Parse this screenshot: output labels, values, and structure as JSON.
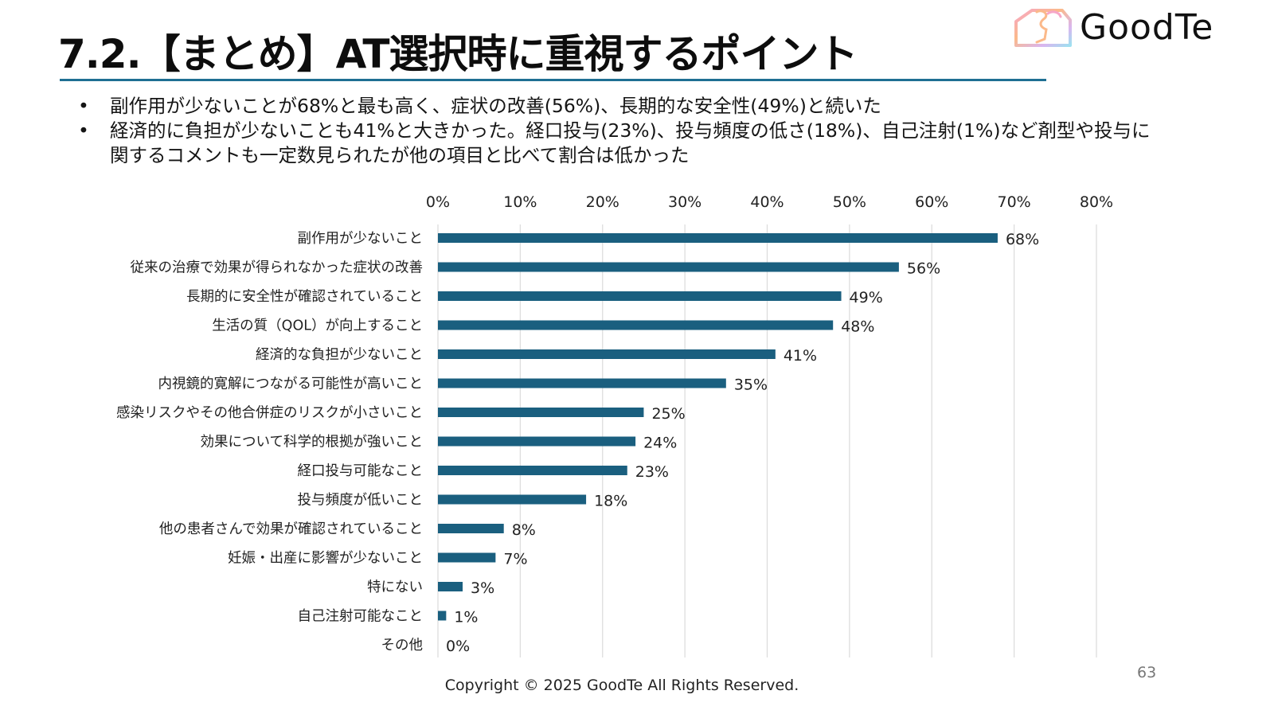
{
  "slide": {
    "title": "7.2.【まとめ】AT選択時に重視するポイント",
    "brand": "GoodTe",
    "bullets": [
      "副作用が少ないことが68%と最も高く、症状の改善(56%)、長期的な安全性(49%)と続いた",
      "経済的に負担が少ないことも41%と大きかった。経口投与(23%)、投与頻度の低さ(18%)、自己注射(1%)など剤型や投与に関するコメントも一定数見られたが他の項目と比べて割合は低かった"
    ],
    "bullet_glyph": "•",
    "footer": "Copyright © 2025 GoodTe All Rights Reserved.",
    "page_number": "63",
    "colors": {
      "accent": "#1f6f93",
      "bar": "#1a5f7f",
      "grid": "#dddddd"
    }
  },
  "chart_data": {
    "type": "bar",
    "orientation": "horizontal",
    "title": "",
    "xlabel": "",
    "ylabel": "",
    "xlim": [
      0,
      80
    ],
    "x_ticks": [
      "0%",
      "10%",
      "20%",
      "30%",
      "40%",
      "50%",
      "60%",
      "70%",
      "80%"
    ],
    "x_tick_values": [
      0,
      10,
      20,
      30,
      40,
      50,
      60,
      70,
      80
    ],
    "x_axis_position": "top",
    "grid": true,
    "legend": "none",
    "categories": [
      "副作用が少ないこと",
      "従来の治療で効果が得られなかった症状の改善",
      "長期的に安全性が確認されていること",
      "生活の質（QOL）が向上すること",
      "経済的な負担が少ないこと",
      "内視鏡的寛解につながる可能性が高いこと",
      "感染リスクやその他合併症のリスクが小さいこと",
      "効果について科学的根拠が強いこと",
      "経口投与可能なこと",
      "投与頻度が低いこと",
      "他の患者さんで効果が確認されていること",
      "妊娠・出産に影響が少ないこと",
      "特にない",
      "自己注射可能なこと",
      "その他"
    ],
    "values": [
      68,
      56,
      49,
      48,
      41,
      35,
      25,
      24,
      23,
      18,
      8,
      7,
      3,
      1,
      0
    ],
    "value_labels": [
      "68%",
      "56%",
      "49%",
      "48%",
      "41%",
      "35%",
      "25%",
      "24%",
      "23%",
      "18%",
      "8%",
      "7%",
      "3%",
      "1%",
      "0%"
    ],
    "unit": "%"
  }
}
